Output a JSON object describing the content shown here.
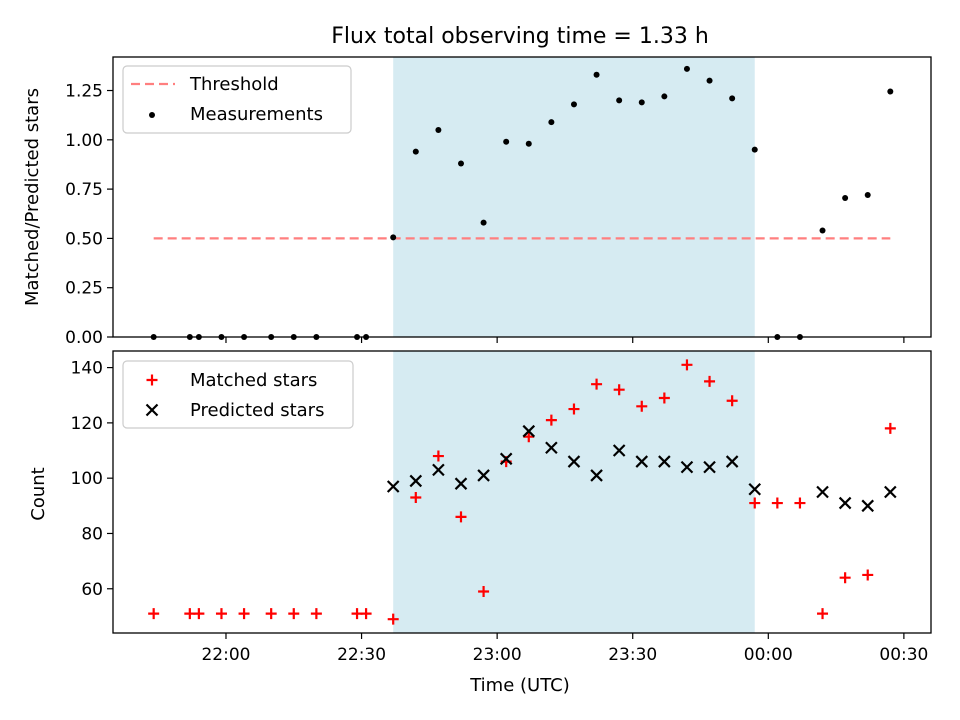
{
  "title": "Flux total observing time = 1.33 h",
  "colors": {
    "shade": "#add8e6",
    "threshold": "#ff7f7f",
    "measurement": "#000000",
    "matched": "#ff0000",
    "predicted": "#000000"
  },
  "chart_data": [
    {
      "type": "scatter",
      "ylabel": "Matched/Predicted stars",
      "ylim": [
        0,
        1.42
      ],
      "yticks": [
        0.0,
        0.25,
        0.5,
        0.75,
        1.0,
        1.25
      ],
      "yticklabels": [
        "0.00",
        "0.25",
        "0.50",
        "0.75",
        "1.00",
        "1.25"
      ],
      "legend": {
        "placement": "upper-left",
        "entries": [
          "Threshold",
          "Measurements"
        ]
      },
      "shaded_interval": [
        "22:37",
        "23:57"
      ],
      "threshold": {
        "name": "Threshold",
        "value": 0.5,
        "x_range": [
          "21:44",
          "00:27"
        ]
      },
      "series": [
        {
          "name": "Measurements",
          "x": [
            "21:44",
            "21:52",
            "21:54",
            "21:59",
            "22:04",
            "22:10",
            "22:15",
            "22:20",
            "22:29",
            "22:31",
            "22:37",
            "22:42",
            "22:47",
            "22:52",
            "22:57",
            "23:02",
            "23:07",
            "23:12",
            "23:17",
            "23:22",
            "23:27",
            "23:32",
            "23:37",
            "23:42",
            "23:47",
            "23:52",
            "23:57",
            "00:02",
            "00:07",
            "00:12",
            "00:17",
            "00:22",
            "00:27"
          ],
          "y": [
            0.0,
            0.0,
            0.0,
            0.0,
            0.0,
            0.0,
            0.0,
            0.0,
            0.0,
            0.0,
            0.505,
            0.94,
            1.05,
            0.88,
            0.58,
            0.99,
            0.98,
            1.09,
            1.18,
            1.33,
            1.2,
            1.19,
            1.22,
            1.36,
            1.3,
            1.21,
            0.95,
            0.0,
            0.0,
            0.54,
            0.705,
            0.72,
            1.245
          ]
        }
      ]
    },
    {
      "type": "scatter",
      "xlabel": "Time (UTC)",
      "ylabel": "Count",
      "xlim": [
        "21:35",
        "00:36"
      ],
      "xticks": [
        "22:00",
        "22:30",
        "23:00",
        "23:30",
        "00:00",
        "00:30"
      ],
      "ylim": [
        44,
        146
      ],
      "yticks": [
        60,
        80,
        100,
        120,
        140
      ],
      "legend": {
        "placement": "upper-left",
        "entries": [
          "Matched stars",
          "Predicted stars"
        ]
      },
      "shaded_interval": [
        "22:37",
        "23:57"
      ],
      "series": [
        {
          "name": "Matched stars",
          "marker": "plus",
          "x": [
            "21:44",
            "21:52",
            "21:54",
            "21:59",
            "22:04",
            "22:10",
            "22:15",
            "22:20",
            "22:29",
            "22:31",
            "22:37",
            "22:42",
            "22:47",
            "22:52",
            "22:57",
            "23:02",
            "23:07",
            "23:12",
            "23:17",
            "23:22",
            "23:27",
            "23:32",
            "23:37",
            "23:42",
            "23:47",
            "23:52",
            "23:57",
            "00:02",
            "00:07",
            "00:12",
            "00:17",
            "00:22",
            "00:27"
          ],
          "y": [
            51,
            51,
            51,
            51,
            51,
            51,
            51,
            51,
            51,
            51,
            49,
            93,
            108,
            86,
            59,
            106,
            115,
            121,
            125,
            134,
            132,
            126,
            129,
            141,
            135,
            128,
            91,
            91,
            91,
            51,
            64,
            65,
            118
          ]
        },
        {
          "name": "Predicted stars",
          "marker": "x",
          "x": [
            "22:37",
            "22:42",
            "22:47",
            "22:52",
            "22:57",
            "23:02",
            "23:07",
            "23:12",
            "23:17",
            "23:22",
            "23:27",
            "23:32",
            "23:37",
            "23:42",
            "23:47",
            "23:52",
            "23:57",
            "00:12",
            "00:17",
            "00:22",
            "00:27"
          ],
          "y": [
            97,
            99,
            103,
            98,
            101,
            107,
            117,
            111,
            106,
            101,
            110,
            106,
            106,
            104,
            104,
            106,
            96,
            95,
            91,
            90,
            95
          ]
        }
      ]
    }
  ]
}
